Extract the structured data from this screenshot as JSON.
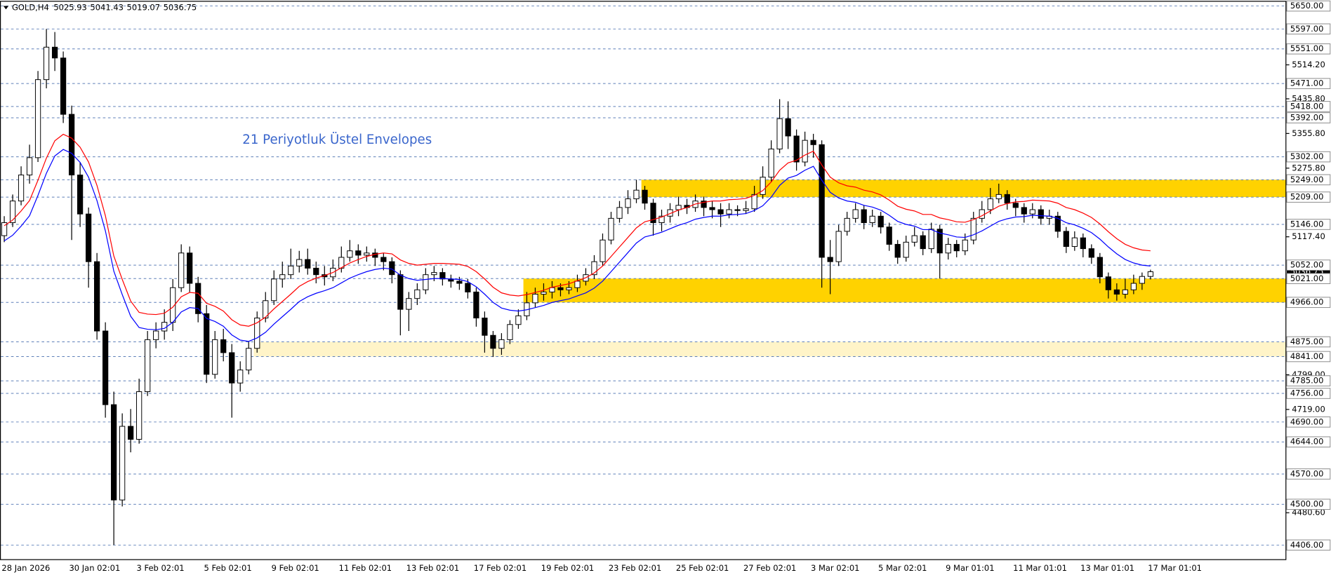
{
  "chart_data": {
    "type": "candlestick",
    "symbol": "GOLD,H4",
    "annotation": "21 Periyotluk Üstel Envelopes",
    "ylim": [
      4372.4,
      5659.9
    ],
    "yticks": [
      {
        "value": 5514.2,
        "label": "5514.20"
      },
      {
        "value": 5435.8,
        "label": "5435.80"
      },
      {
        "value": 5355.8,
        "label": "5355.80"
      },
      {
        "value": 5275.8,
        "label": "5275.80"
      },
      {
        "value": 5117.4,
        "label": "5117.40"
      },
      {
        "value": 4799,
        "label": "4799.00"
      },
      {
        "value": 4719,
        "label": "4719.00"
      },
      {
        "value": 4480.6,
        "label": "4480.60"
      }
    ],
    "levels": [
      {
        "value": 5650,
        "label": "5650.00"
      },
      {
        "value": 5597,
        "label": "5597.00"
      },
      {
        "value": 5551,
        "label": "5551.00"
      },
      {
        "value": 5471,
        "label": "5471.00"
      },
      {
        "value": 5418,
        "label": "5418.00"
      },
      {
        "value": 5392,
        "label": "5392.00"
      },
      {
        "value": 5302,
        "label": "5302.00"
      },
      {
        "value": 5249,
        "label": "5249.00"
      },
      {
        "value": 5209,
        "label": "5209.00"
      },
      {
        "value": 5146,
        "label": "5146.00"
      },
      {
        "value": 5052,
        "label": "5052.00"
      },
      {
        "value": 5021,
        "label": "5021.00"
      },
      {
        "value": 4966,
        "label": "4966.00"
      },
      {
        "value": 4875,
        "label": "4875.00"
      },
      {
        "value": 4841,
        "label": "4841.00"
      },
      {
        "value": 4785,
        "label": "4785.00"
      },
      {
        "value": 4756,
        "label": "4756.00"
      },
      {
        "value": 4690,
        "label": "4690.00"
      },
      {
        "value": 4644,
        "label": "4644.00"
      },
      {
        "value": 4570,
        "label": "4570.00"
      },
      {
        "value": 4500,
        "label": "4500.00"
      },
      {
        "value": 4406,
        "label": "4406.00"
      }
    ],
    "zones": [
      {
        "from": 5209,
        "to": 5249,
        "start": 76,
        "color": "#ffd200"
      },
      {
        "from": 4966,
        "to": 5021,
        "start": 62,
        "color": "#ffd200"
      },
      {
        "from": 4841,
        "to": 4875,
        "start": 30,
        "color": "#fff4c8"
      }
    ],
    "categories": [
      "28 Jan 2026",
      null,
      null,
      null,
      null,
      null,
      null,
      null,
      "30 Jan 02:01",
      null,
      null,
      null,
      null,
      null,
      null,
      null,
      "3 Feb 02:01",
      null,
      null,
      null,
      null,
      null,
      null,
      null,
      "5 Feb 02:01",
      null,
      null,
      null,
      null,
      null,
      null,
      null,
      "9 Feb 02:01",
      null,
      null,
      null,
      null,
      null,
      null,
      null,
      "11 Feb 02:01",
      null,
      null,
      null,
      null,
      null,
      null,
      null,
      "13 Feb 02:01",
      null,
      null,
      null,
      null,
      null,
      null,
      null,
      "17 Feb 02:01",
      null,
      null,
      null,
      null,
      null,
      null,
      null,
      "19 Feb 02:01",
      null,
      null,
      null,
      null,
      null,
      null,
      null,
      "23 Feb 02:01",
      null,
      null,
      null,
      null,
      null,
      null,
      null,
      "25 Feb 02:01",
      null,
      null,
      null,
      null,
      null,
      null,
      null,
      "27 Feb 02:01",
      null,
      null,
      null,
      null,
      null,
      null,
      null,
      "3 Mar 02:01",
      null,
      null,
      null,
      null,
      null,
      null,
      null,
      "5 Mar 02:01",
      null,
      null,
      null,
      null,
      null,
      null,
      null,
      "9 Mar 01:01",
      null,
      null,
      null,
      null,
      null,
      null,
      null,
      "11 Mar 01:01",
      null,
      null,
      null,
      null,
      null,
      null,
      null,
      "13 Mar 01:01",
      null,
      null,
      null,
      null,
      null,
      null,
      null,
      "17 Mar 01:01"
    ],
    "open": [
      5120,
      5150,
      5200,
      5260,
      5300,
      5480,
      5555,
      5530,
      5400,
      5260,
      5170,
      5060,
      4900,
      4730,
      4510,
      4680,
      4650,
      4760,
      4880,
      4900,
      4920,
      5000,
      5080,
      5010,
      4940,
      4800,
      4880,
      4850,
      4780,
      4810,
      4860,
      4930,
      4970,
      5020,
      5030,
      5050,
      5065,
      5045,
      5030,
      5025,
      5045,
      5070,
      5085,
      5075,
      5080,
      5070,
      5060,
      5030,
      4950,
      4975,
      4995,
      5030,
      5035,
      5020,
      5015,
      5010,
      4990,
      4930,
      4890,
      4860,
      4880,
      4915,
      4935,
      4965,
      4985,
      4990,
      5000,
      4995,
      5000,
      5015,
      5030,
      5060,
      5110,
      5160,
      5185,
      5205,
      5225,
      5195,
      5150,
      5165,
      5180,
      5190,
      5185,
      5200,
      5185,
      5180,
      5170,
      5180,
      5178,
      5182,
      5215,
      5255,
      5320,
      5390,
      5350,
      5290,
      5340,
      5330,
      5070,
      5060,
      5130,
      5160,
      5180,
      5150,
      5165,
      5140,
      5100,
      5070,
      5105,
      5120,
      5090,
      5135,
      5080,
      5100,
      5085,
      5110,
      5160,
      5180,
      5205,
      5215,
      5195,
      5185,
      5170,
      5180,
      5160,
      5165,
      5130,
      5095,
      5115,
      5090,
      5070,
      5025,
      4995,
      4985,
      4995,
      5010,
      5025.93
    ],
    "high": [
      5165,
      5215,
      5280,
      5330,
      5500,
      5597,
      5590,
      5545,
      5420,
      5290,
      5185,
      5080,
      4920,
      4760,
      4710,
      4720,
      4790,
      4900,
      4920,
      4950,
      5020,
      5100,
      5095,
      5025,
      4960,
      4900,
      4905,
      4870,
      4830,
      4875,
      4945,
      4990,
      5040,
      5060,
      5090,
      5085,
      5090,
      5060,
      5050,
      5065,
      5095,
      5110,
      5100,
      5095,
      5090,
      5080,
      5070,
      5040,
      4990,
      5010,
      5045,
      5050,
      5045,
      5030,
      5025,
      5020,
      5000,
      4945,
      4900,
      4895,
      4925,
      4950,
      4990,
      5000,
      5010,
      5015,
      5010,
      5015,
      5030,
      5045,
      5075,
      5125,
      5175,
      5200,
      5225,
      5249,
      5235,
      5205,
      5180,
      5195,
      5210,
      5205,
      5215,
      5210,
      5200,
      5195,
      5195,
      5190,
      5200,
      5235,
      5280,
      5340,
      5435,
      5430,
      5365,
      5360,
      5355,
      5340,
      5110,
      5145,
      5175,
      5195,
      5190,
      5180,
      5175,
      5150,
      5110,
      5120,
      5140,
      5130,
      5150,
      5145,
      5115,
      5110,
      5125,
      5175,
      5200,
      5230,
      5240,
      5225,
      5205,
      5195,
      5195,
      5190,
      5180,
      5175,
      5140,
      5130,
      5125,
      5100,
      5080,
      5035,
      5010,
      5020,
      5030,
      5035,
      5041.43
    ],
    "low": [
      5105,
      5140,
      5190,
      5240,
      5290,
      5460,
      5500,
      5380,
      5110,
      5140,
      5000,
      4880,
      4700,
      4406,
      4495,
      4620,
      4640,
      4750,
      4860,
      4880,
      4900,
      4990,
      4990,
      4920,
      4780,
      4790,
      4830,
      4700,
      4760,
      4800,
      4850,
      4920,
      4960,
      5000,
      5020,
      5035,
      5030,
      5010,
      5005,
      5015,
      5035,
      5060,
      5055,
      5060,
      5050,
      5040,
      5010,
      4890,
      4900,
      4960,
      4985,
      5015,
      5005,
      5000,
      4995,
      4975,
      4910,
      4850,
      4840,
      4845,
      4870,
      4905,
      4925,
      4955,
      4970,
      4975,
      4980,
      4985,
      4990,
      5005,
      5020,
      5050,
      5100,
      5150,
      5170,
      5195,
      5180,
      5120,
      5130,
      5150,
      5165,
      5170,
      5175,
      5165,
      5160,
      5140,
      5160,
      5165,
      5170,
      5175,
      5205,
      5245,
      5310,
      5320,
      5270,
      5280,
      5300,
      5000,
      4985,
      5050,
      5120,
      5150,
      5135,
      5140,
      5125,
      5085,
      5055,
      5060,
      5095,
      5075,
      5080,
      5021,
      5065,
      5070,
      5075,
      5100,
      5150,
      5170,
      5195,
      5180,
      5165,
      5150,
      5160,
      5145,
      5145,
      5115,
      5080,
      5085,
      5070,
      5055,
      5010,
      4975,
      4970,
      4975,
      4985,
      4995,
      5019.07
    ],
    "close": [
      5150,
      5200,
      5260,
      5300,
      5480,
      5555,
      5530,
      5400,
      5260,
      5170,
      5060,
      4900,
      4730,
      4510,
      4680,
      4650,
      4760,
      4880,
      4900,
      4920,
      5000,
      5080,
      5010,
      4940,
      4800,
      4880,
      4850,
      4780,
      4810,
      4860,
      4930,
      4970,
      5020,
      5030,
      5050,
      5065,
      5045,
      5030,
      5025,
      5045,
      5070,
      5085,
      5075,
      5080,
      5070,
      5060,
      5030,
      4950,
      4975,
      4995,
      5030,
      5035,
      5020,
      5015,
      5010,
      4990,
      4930,
      4890,
      4860,
      4880,
      4915,
      4935,
      4965,
      4985,
      4990,
      5000,
      4995,
      5000,
      5015,
      5030,
      5060,
      5110,
      5160,
      5185,
      5205,
      5225,
      5195,
      5150,
      5165,
      5180,
      5190,
      5185,
      5200,
      5185,
      5180,
      5170,
      5180,
      5178,
      5182,
      5215,
      5255,
      5320,
      5390,
      5350,
      5290,
      5340,
      5330,
      5070,
      5060,
      5130,
      5160,
      5180,
      5150,
      5165,
      5140,
      5100,
      5070,
      5105,
      5120,
      5090,
      5135,
      5080,
      5100,
      5085,
      5110,
      5160,
      5180,
      5205,
      5215,
      5195,
      5185,
      5170,
      5180,
      5160,
      5165,
      5130,
      5095,
      5115,
      5090,
      5070,
      5025,
      4995,
      4985,
      4995,
      5010,
      5025.93,
      5036.75
    ],
    "series": [
      {
        "color": "#ff0000",
        "values": [
          5143,
          5156,
          5177,
          5201,
          5248,
          5299,
          5339,
          5354,
          5345,
          5324,
          5290,
          5236,
          5166,
          5073,
          5019,
          4969,
          4943,
          4939,
          4938,
          4941,
          4955,
          4979,
          4989,
          4987,
          4964,
          4957,
          4946,
          4926,
          4914,
          4911,
          4919,
          4932,
          4951,
          4968,
          4985,
          5003,
          5014,
          5022,
          5028,
          5035,
          5046,
          5057,
          5065,
          5072,
          5077,
          5080,
          5078,
          5064,
          5056,
          5052,
          5054,
          5056,
          5056,
          5055,
          5054,
          5049,
          5037,
          5020,
          5001,
          4988,
          4983,
          4981,
          4984,
          4989,
          4994,
          5001,
          5005,
          5009,
          5016,
          5023,
          5034,
          5050,
          5072,
          5094,
          5116,
          5138,
          5152,
          5157,
          5163,
          5171,
          5179,
          5185,
          5193,
          5197,
          5200,
          5200,
          5203,
          5204,
          5206,
          5213,
          5224,
          5244,
          5271,
          5288,
          5294,
          5306,
          5315,
          5283,
          5255,
          5242,
          5235,
          5232,
          5225,
          5221,
          5214,
          5202,
          5188,
          5181,
          5177,
          5169,
          5169,
          5161,
          5157,
          5152,
          5151,
          5157,
          5166,
          5177,
          5188,
          5194,
          5198,
          5199,
          5202,
          5201,
          5200,
          5195,
          5185,
          5180,
          5172,
          5162,
          5147,
          5129,
          5113,
          5100,
          5092,
          5087,
          5085
        ]
      },
      {
        "color": "#0000ff",
        "values": [
          5108,
          5121,
          5142,
          5166,
          5213,
          5264,
          5304,
          5319,
          5310,
          5289,
          5255,
          5201,
          5131,
          5038,
          4984,
          4934,
          4908,
          4904,
          4903,
          4906,
          4920,
          4944,
          4954,
          4952,
          4929,
          4922,
          4911,
          4891,
          4879,
          4876,
          4884,
          4897,
          4916,
          4933,
          4950,
          4968,
          4979,
          4987,
          4993,
          5000,
          5011,
          5022,
          5030,
          5037,
          5042,
          5045,
          5043,
          5029,
          5021,
          5017,
          5019,
          5021,
          5021,
          5020,
          5019,
          5014,
          5002,
          4985,
          4966,
          4953,
          4948,
          4946,
          4949,
          4954,
          4959,
          4966,
          4970,
          4974,
          4981,
          4988,
          4999,
          5015,
          5037,
          5059,
          5081,
          5103,
          5117,
          5122,
          5128,
          5136,
          5144,
          5150,
          5158,
          5162,
          5165,
          5165,
          5168,
          5169,
          5171,
          5178,
          5189,
          5209,
          5236,
          5253,
          5259,
          5271,
          5280,
          5248,
          5220,
          5207,
          5200,
          5197,
          5190,
          5186,
          5179,
          5167,
          5153,
          5146,
          5142,
          5134,
          5134,
          5126,
          5122,
          5117,
          5116,
          5122,
          5131,
          5142,
          5153,
          5159,
          5163,
          5164,
          5167,
          5166,
          5165,
          5160,
          5150,
          5145,
          5137,
          5127,
          5112,
          5094,
          5078,
          5065,
          5057,
          5052,
          5050
        ]
      }
    ]
  }
}
